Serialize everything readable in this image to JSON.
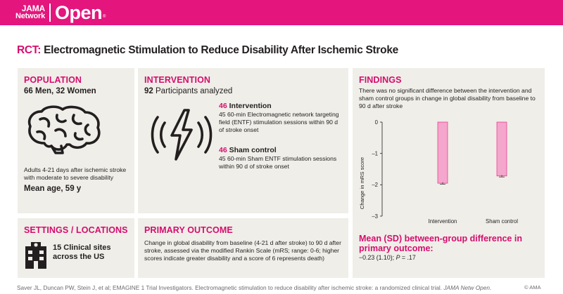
{
  "header": {
    "logo_line1": "JAMA",
    "logo_line2": "Network",
    "logo_main": "Open",
    "logo_tm": "®",
    "brand_color": "#e4157d"
  },
  "title": {
    "prefix": "RCT:",
    "text": "Electromagnetic Stimulation to Reduce Disability After Ischemic Stroke"
  },
  "population": {
    "heading": "POPULATION",
    "summary": "66 Men, 32 Women",
    "icon": "brain-icon",
    "description": "Adults 4-21 days after ischemic stroke with moderate to severe disability",
    "mean_age": "Mean age, 59 y"
  },
  "intervention": {
    "heading": "INTERVENTION",
    "participants_count": "92",
    "participants_label": "Participants analyzed",
    "icon": "electromagnetic-wave-icon",
    "groups": [
      {
        "count": "46",
        "name": "Intervention",
        "description": "45 60-min Electromagnetic network targeting field (ENTF) stimulation sessions within 90 d of stroke onset"
      },
      {
        "count": "46",
        "name": "Sham control",
        "description": "45 60-min Sham ENTF stimulation sessions within 90 d of stroke onset"
      }
    ]
  },
  "findings": {
    "heading": "FINDINGS",
    "summary": "There was no significant difference between the intervention and sham control groups in change in global disability from baseline to 90 d after stroke",
    "difference_heading": "Mean (SD) between-group difference in primary outcome:",
    "difference_value": "−0.23 (1.10); ",
    "p_label": "P",
    "p_value": " = .17"
  },
  "chart_data": {
    "type": "bar",
    "categories": [
      "Intervention",
      "Sham control"
    ],
    "values": [
      -1.95,
      -1.72
    ],
    "error": [
      0.03,
      0.03
    ],
    "ylabel": "Change in mRS score",
    "xlabel": "",
    "ylim": [
      -3,
      0
    ],
    "yticks": [
      "0",
      "–1",
      "–2",
      "–3"
    ],
    "ytick_values": [
      0,
      -1,
      -2,
      -3
    ],
    "bar_color": "#f4a6cc",
    "bar_border": "#e4157d"
  },
  "settings": {
    "heading": "SETTINGS / LOCATIONS",
    "icon": "hospital-building-icon",
    "sites": "15 Clinical sites across the US"
  },
  "outcome": {
    "heading": "PRIMARY OUTCOME",
    "description": "Change in global disability from baseline (4-21 d after stroke) to 90 d after stroke, assessed via the modified Rankin Scale (mRS; range: 0-6; higher scores indicate greater disability and a score of 6 represents death)"
  },
  "footer": {
    "citation_authors": "Saver JL, Duncan PW, Stein J, et al; EMAGINE 1 Trial Investigators. Electromagnetic stimulation to reduce disability after ischemic stroke: a randomized clinical trial. ",
    "citation_journal": "JAMA Netw Open",
    "citation_end": ".",
    "copyright": "© AMA"
  }
}
